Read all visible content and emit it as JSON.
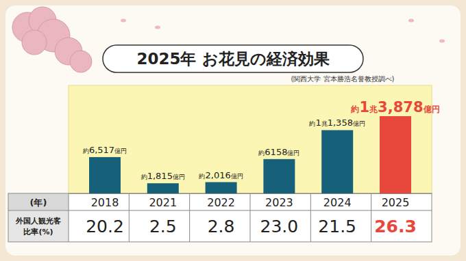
{
  "chart_data": {
    "type": "bar",
    "title": "2025年 お花見の経済効果",
    "subtitle": "(関西大学 宮本勝浩名誉教授調べ)",
    "categories": [
      "2018",
      "2021",
      "2022",
      "2023",
      "2024",
      "2025"
    ],
    "values": [
      6517,
      1815,
      2016,
      6158,
      11358,
      13878
    ],
    "value_labels": [
      "約6,517億円",
      "約1,815億円",
      "約2,016億円",
      "約6158億円",
      "約1兆1,358億円",
      "約1兆3,878億円"
    ],
    "colors": [
      "#16607a",
      "#16607a",
      "#16607a",
      "#16607a",
      "#16607a",
      "#e8473b"
    ],
    "data_labels": true,
    "ylim": [
      0,
      19400
    ],
    "tick_labels": "x"
  },
  "table": {
    "header": "(年)",
    "row_label": [
      "外国人観光客",
      "比率(%)"
    ],
    "values": [
      20.2,
      2.5,
      2.8,
      23.0,
      21.5,
      26.3
    ]
  }
}
